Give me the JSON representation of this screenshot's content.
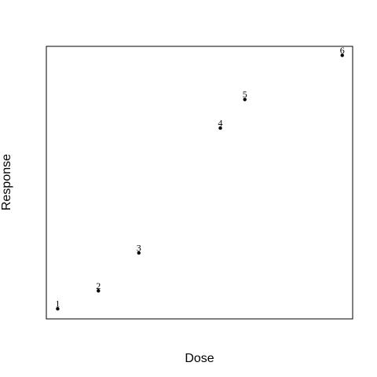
{
  "chart_data": {
    "type": "scatter",
    "title": "",
    "xlabel": "Dose",
    "ylabel": "Response",
    "xlim": [
      0,
      1
    ],
    "ylim": [
      0,
      1
    ],
    "show_axes_ticks": false,
    "grid": false,
    "legend": "none",
    "marker_color": "#000000",
    "frame_color": "#000000",
    "points": [
      {
        "label": "1",
        "x": 0.037,
        "y": 0.037
      },
      {
        "label": "2",
        "x": 0.17,
        "y": 0.103
      },
      {
        "label": "3",
        "x": 0.302,
        "y": 0.242
      },
      {
        "label": "4",
        "x": 0.568,
        "y": 0.7
      },
      {
        "label": "5",
        "x": 0.648,
        "y": 0.805
      },
      {
        "label": "6",
        "x": 0.966,
        "y": 0.967
      }
    ]
  }
}
